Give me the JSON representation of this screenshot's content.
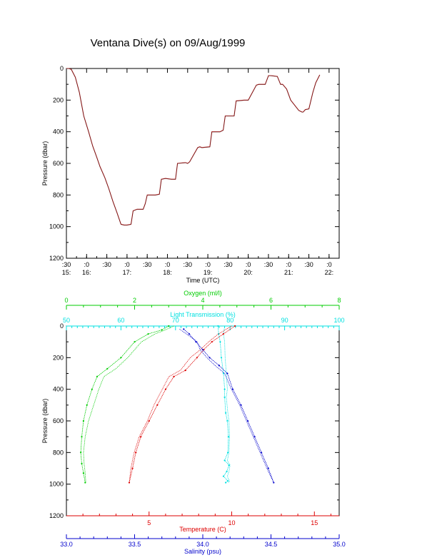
{
  "title": "Ventana Dive(s) on 09/Aug/1999",
  "colors": {
    "axis": "#000000",
    "track": "#aa2222",
    "oxygen": "#00cc00",
    "transmission": "#00e0e0",
    "temperature": "#dd0000",
    "salinity": "#0000cc"
  },
  "chart_data": [
    {
      "type": "line",
      "xlabel": "Time (UTC)",
      "ylabel": "Pressure (dbar)",
      "ylim": [
        0,
        1200
      ],
      "y_reversed": true,
      "xlim": [
        15.5,
        22.25
      ],
      "y_ticks": [
        0,
        200,
        400,
        600,
        800,
        1000,
        1200
      ],
      "x_ticks": [
        {
          "v": 15.5,
          "top": ":30",
          "bottom": "15:"
        },
        {
          "v": 16.0,
          "top": ":0",
          "bottom": "16:"
        },
        {
          "v": 16.5,
          "top": ":30",
          "bottom": ""
        },
        {
          "v": 17.0,
          "top": ":0",
          "bottom": "17:"
        },
        {
          "v": 17.5,
          "top": ":30",
          "bottom": ""
        },
        {
          "v": 18.0,
          "top": ":0",
          "bottom": "18:"
        },
        {
          "v": 18.5,
          "top": ":30",
          "bottom": ""
        },
        {
          "v": 19.0,
          "top": ":0",
          "bottom": "19:"
        },
        {
          "v": 19.5,
          "top": ":30",
          "bottom": ""
        },
        {
          "v": 20.0,
          "top": ":0",
          "bottom": "20:"
        },
        {
          "v": 20.5,
          "top": ":30",
          "bottom": ""
        },
        {
          "v": 21.0,
          "top": ":0",
          "bottom": "21:"
        },
        {
          "v": 21.5,
          "top": ":30",
          "bottom": ""
        },
        {
          "v": 22.0,
          "top": ":0",
          "bottom": "22:"
        }
      ],
      "series": [
        {
          "x": [
            15.5,
            15.56,
            15.62,
            15.72,
            15.82,
            15.93,
            16.05,
            16.15,
            16.25,
            16.33,
            16.45,
            16.55,
            16.65,
            16.75,
            16.85,
            16.93,
            17.0,
            17.1,
            17.15,
            17.2,
            17.25,
            17.4,
            17.45,
            17.5,
            17.6,
            17.7,
            17.8,
            17.85,
            17.95,
            18.1,
            18.2,
            18.25,
            18.45,
            18.5,
            18.55,
            18.75,
            18.8,
            18.85,
            19.05,
            19.1,
            19.15,
            19.3,
            19.38,
            19.43,
            19.6,
            19.65,
            19.7,
            19.9,
            19.95,
            20.0,
            20.2,
            20.26,
            20.32,
            20.42,
            20.5,
            20.52,
            20.56,
            20.72,
            20.8,
            20.85,
            20.95,
            21.05,
            21.25,
            21.33,
            21.36,
            21.41,
            21.5,
            21.6,
            21.67,
            21.77
          ],
          "y": [
            0,
            0,
            5,
            55,
            150,
            300,
            400,
            490,
            560,
            620,
            690,
            760,
            840,
            910,
            985,
            990,
            990,
            985,
            900,
            895,
            890,
            890,
            855,
            800,
            800,
            800,
            795,
            700,
            695,
            700,
            700,
            600,
            595,
            600,
            590,
            500,
            495,
            500,
            495,
            400,
            400,
            400,
            390,
            300,
            300,
            300,
            205,
            200,
            200,
            200,
            105,
            100,
            100,
            100,
            45,
            45,
            45,
            50,
            100,
            100,
            130,
            200,
            265,
            275,
            275,
            260,
            255,
            150,
            90,
            40
          ]
        }
      ]
    },
    {
      "type": "line",
      "ylabel": "Pressure (dbar)",
      "ylim": [
        0,
        1200
      ],
      "y_reversed": true,
      "y_ticks": [
        0,
        200,
        400,
        600,
        800,
        1000,
        1200
      ],
      "axes": {
        "oxygen": {
          "label": "Oxygen (ml/l)",
          "lim": [
            0,
            8
          ],
          "ticks": [
            "0",
            "2",
            "4",
            "6",
            "8"
          ]
        },
        "transmission": {
          "label": "Light Transmission (%)",
          "lim": [
            50,
            100
          ],
          "ticks": [
            "50",
            "60",
            "70",
            "80",
            "90",
            "100"
          ]
        },
        "temperature": {
          "label": "Temperature (C)",
          "lim": [
            0,
            16.5
          ],
          "ticks": [
            "5",
            "10",
            "15"
          ],
          "tick_values": [
            5,
            10,
            15
          ]
        },
        "salinity": {
          "label": "Salinity (psu)",
          "lim": [
            33.0,
            35.0
          ],
          "ticks": [
            "33.0",
            "33.5",
            "34.0",
            "34.5",
            "35.0"
          ]
        }
      },
      "series": [
        {
          "name": "Oxygen",
          "axis": "oxygen",
          "x": [
            3.0,
            2.8,
            2.4,
            2.0,
            1.6,
            1.2,
            0.9,
            0.75,
            0.6,
            0.5,
            0.45,
            0.42,
            0.45,
            0.5,
            0.55
          ],
          "y": [
            0,
            25,
            50,
            100,
            200,
            270,
            320,
            400,
            500,
            600,
            700,
            800,
            870,
            930,
            990
          ],
          "return_x": [
            3.15,
            2.9,
            2.6,
            2.2,
            1.8,
            1.45,
            1.1,
            0.95,
            0.8,
            0.65,
            0.55,
            0.5,
            0.52,
            0.55,
            0.57
          ],
          "return_y": [
            0,
            25,
            50,
            100,
            200,
            270,
            320,
            400,
            500,
            600,
            700,
            800,
            870,
            930,
            990
          ]
        },
        {
          "name": "Light Transmission",
          "axis": "transmission",
          "x": [
            77.8,
            77.9,
            78.2,
            78.4,
            78.8,
            79.0,
            79.0,
            79.2,
            79.5,
            79.7,
            79.6,
            79.0,
            79.8,
            79.4,
            78.8,
            79.6,
            79.2
          ],
          "y": [
            0,
            50,
            100,
            200,
            300,
            400,
            450,
            550,
            600,
            700,
            800,
            850,
            880,
            920,
            950,
            980,
            990
          ],
          "return_x": [
            79.0,
            78.8,
            79.0,
            79.1,
            79.3,
            79.5,
            79.3,
            79.6,
            79.8,
            79.9,
            79.8,
            79.5,
            80.0,
            79.8,
            79.5,
            79.9,
            79.7
          ],
          "return_y": [
            0,
            50,
            100,
            200,
            300,
            400,
            450,
            550,
            600,
            700,
            800,
            850,
            880,
            920,
            950,
            980,
            990
          ]
        },
        {
          "name": "Temperature",
          "axis": "temperature",
          "x": [
            10.2,
            9.5,
            8.8,
            8.3,
            7.9,
            7.2,
            6.5,
            6.0,
            5.5,
            5.0,
            4.5,
            4.2,
            4.0,
            3.8
          ],
          "y": [
            0,
            50,
            100,
            150,
            200,
            280,
            320,
            400,
            500,
            600,
            700,
            800,
            900,
            990
          ],
          "return_x": [
            10.0,
            9.2,
            8.6,
            8.1,
            7.5,
            6.9,
            6.2,
            5.8,
            5.3,
            4.9,
            4.4,
            4.1,
            3.9,
            3.8
          ],
          "return_y": [
            0,
            50,
            100,
            150,
            200,
            280,
            320,
            400,
            500,
            600,
            700,
            800,
            900,
            990
          ]
        },
        {
          "name": "Salinity",
          "axis": "salinity",
          "x": [
            33.86,
            33.9,
            33.95,
            34.0,
            34.05,
            34.12,
            34.18,
            34.22,
            34.28,
            34.33,
            34.38,
            34.43,
            34.48,
            34.52
          ],
          "y": [
            20,
            50,
            100,
            150,
            200,
            250,
            300,
            400,
            500,
            600,
            700,
            800,
            900,
            990
          ],
          "return_x": [
            33.83,
            33.88,
            33.96,
            33.98,
            34.03,
            34.09,
            34.16,
            34.21,
            34.27,
            34.32,
            34.37,
            34.42,
            34.47,
            34.52
          ],
          "return_y": [
            20,
            50,
            100,
            150,
            200,
            250,
            300,
            400,
            500,
            600,
            700,
            800,
            900,
            990
          ]
        }
      ]
    }
  ]
}
